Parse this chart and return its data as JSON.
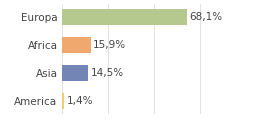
{
  "categories": [
    "Europa",
    "Africa",
    "Asia",
    "America"
  ],
  "values": [
    68.1,
    15.9,
    14.5,
    1.4
  ],
  "labels": [
    "68,1%",
    "15,9%",
    "14,5%",
    "1,4%"
  ],
  "bar_colors": [
    "#b5c98e",
    "#f0a86e",
    "#7285b5",
    "#f0d070"
  ],
  "background_color": "#ffffff",
  "xlim": [
    0,
    100
  ],
  "bar_height": 0.58,
  "label_fontsize": 7.5,
  "tick_fontsize": 7.5,
  "grid_color": "#dddddd",
  "label_color": "#555555",
  "text_color": "#444444"
}
